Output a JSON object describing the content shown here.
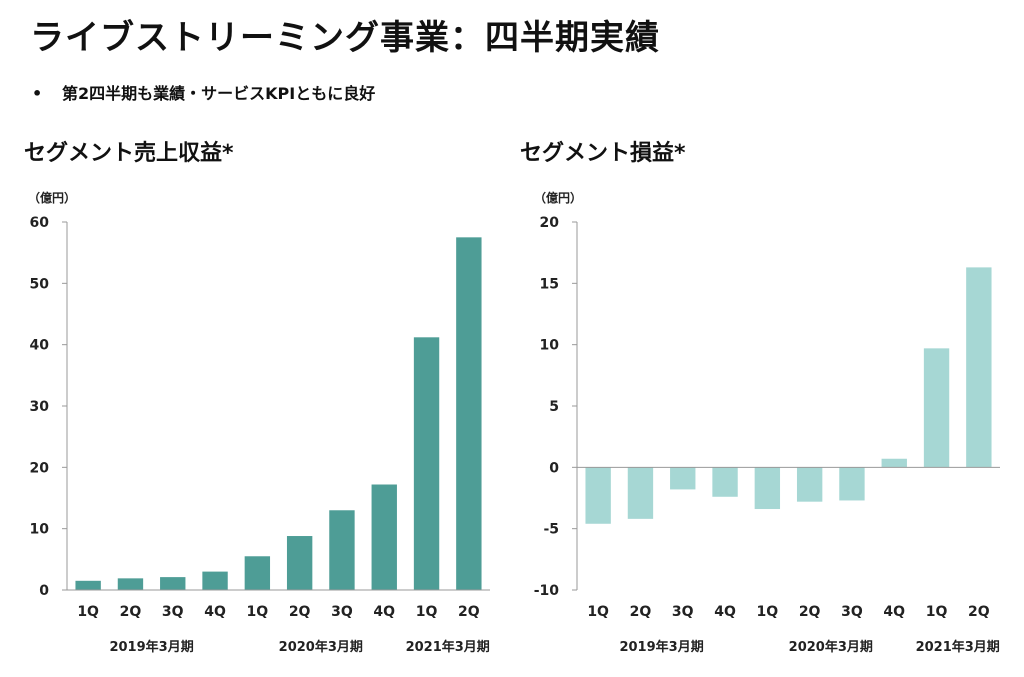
{
  "header": {
    "title": "ライブストリーミング事業：四半期実績",
    "bullet_marker": "•",
    "bullet": "第2四半期も業績・サービスKPIともに良好"
  },
  "colors": {
    "revenue_bar": "#4e9d96",
    "profit_bar": "#a6d7d4",
    "axis": "#999999"
  },
  "chart_data": [
    {
      "type": "bar",
      "title": "セグメント売上収益*",
      "ylabel": "（億円）",
      "categories": [
        "1Q",
        "2Q",
        "3Q",
        "4Q",
        "1Q",
        "2Q",
        "3Q",
        "4Q",
        "1Q",
        "2Q"
      ],
      "values": [
        1.5,
        1.9,
        2.1,
        3.0,
        5.5,
        8.8,
        13.0,
        17.2,
        41.2,
        57.5
      ],
      "ylim": [
        0,
        60
      ],
      "yticks": [
        0,
        10,
        20,
        30,
        40,
        50,
        60
      ],
      "period_labels": [
        "2019年3月期",
        "2020年3月期",
        "2021年3月期"
      ],
      "grid": false
    },
    {
      "type": "bar",
      "title": "セグメント損益*",
      "ylabel": "（億円）",
      "categories": [
        "1Q",
        "2Q",
        "3Q",
        "4Q",
        "1Q",
        "2Q",
        "3Q",
        "4Q",
        "1Q",
        "2Q"
      ],
      "values": [
        -4.6,
        -4.2,
        -1.8,
        -2.4,
        -3.4,
        -2.8,
        -2.7,
        0.7,
        9.7,
        16.3
      ],
      "ylim": [
        -10,
        20
      ],
      "yticks": [
        -10,
        -5,
        0,
        5,
        10,
        15,
        20
      ],
      "period_labels": [
        "2019年3月期",
        "2020年3月期",
        "2021年3月期"
      ],
      "grid": false
    }
  ]
}
